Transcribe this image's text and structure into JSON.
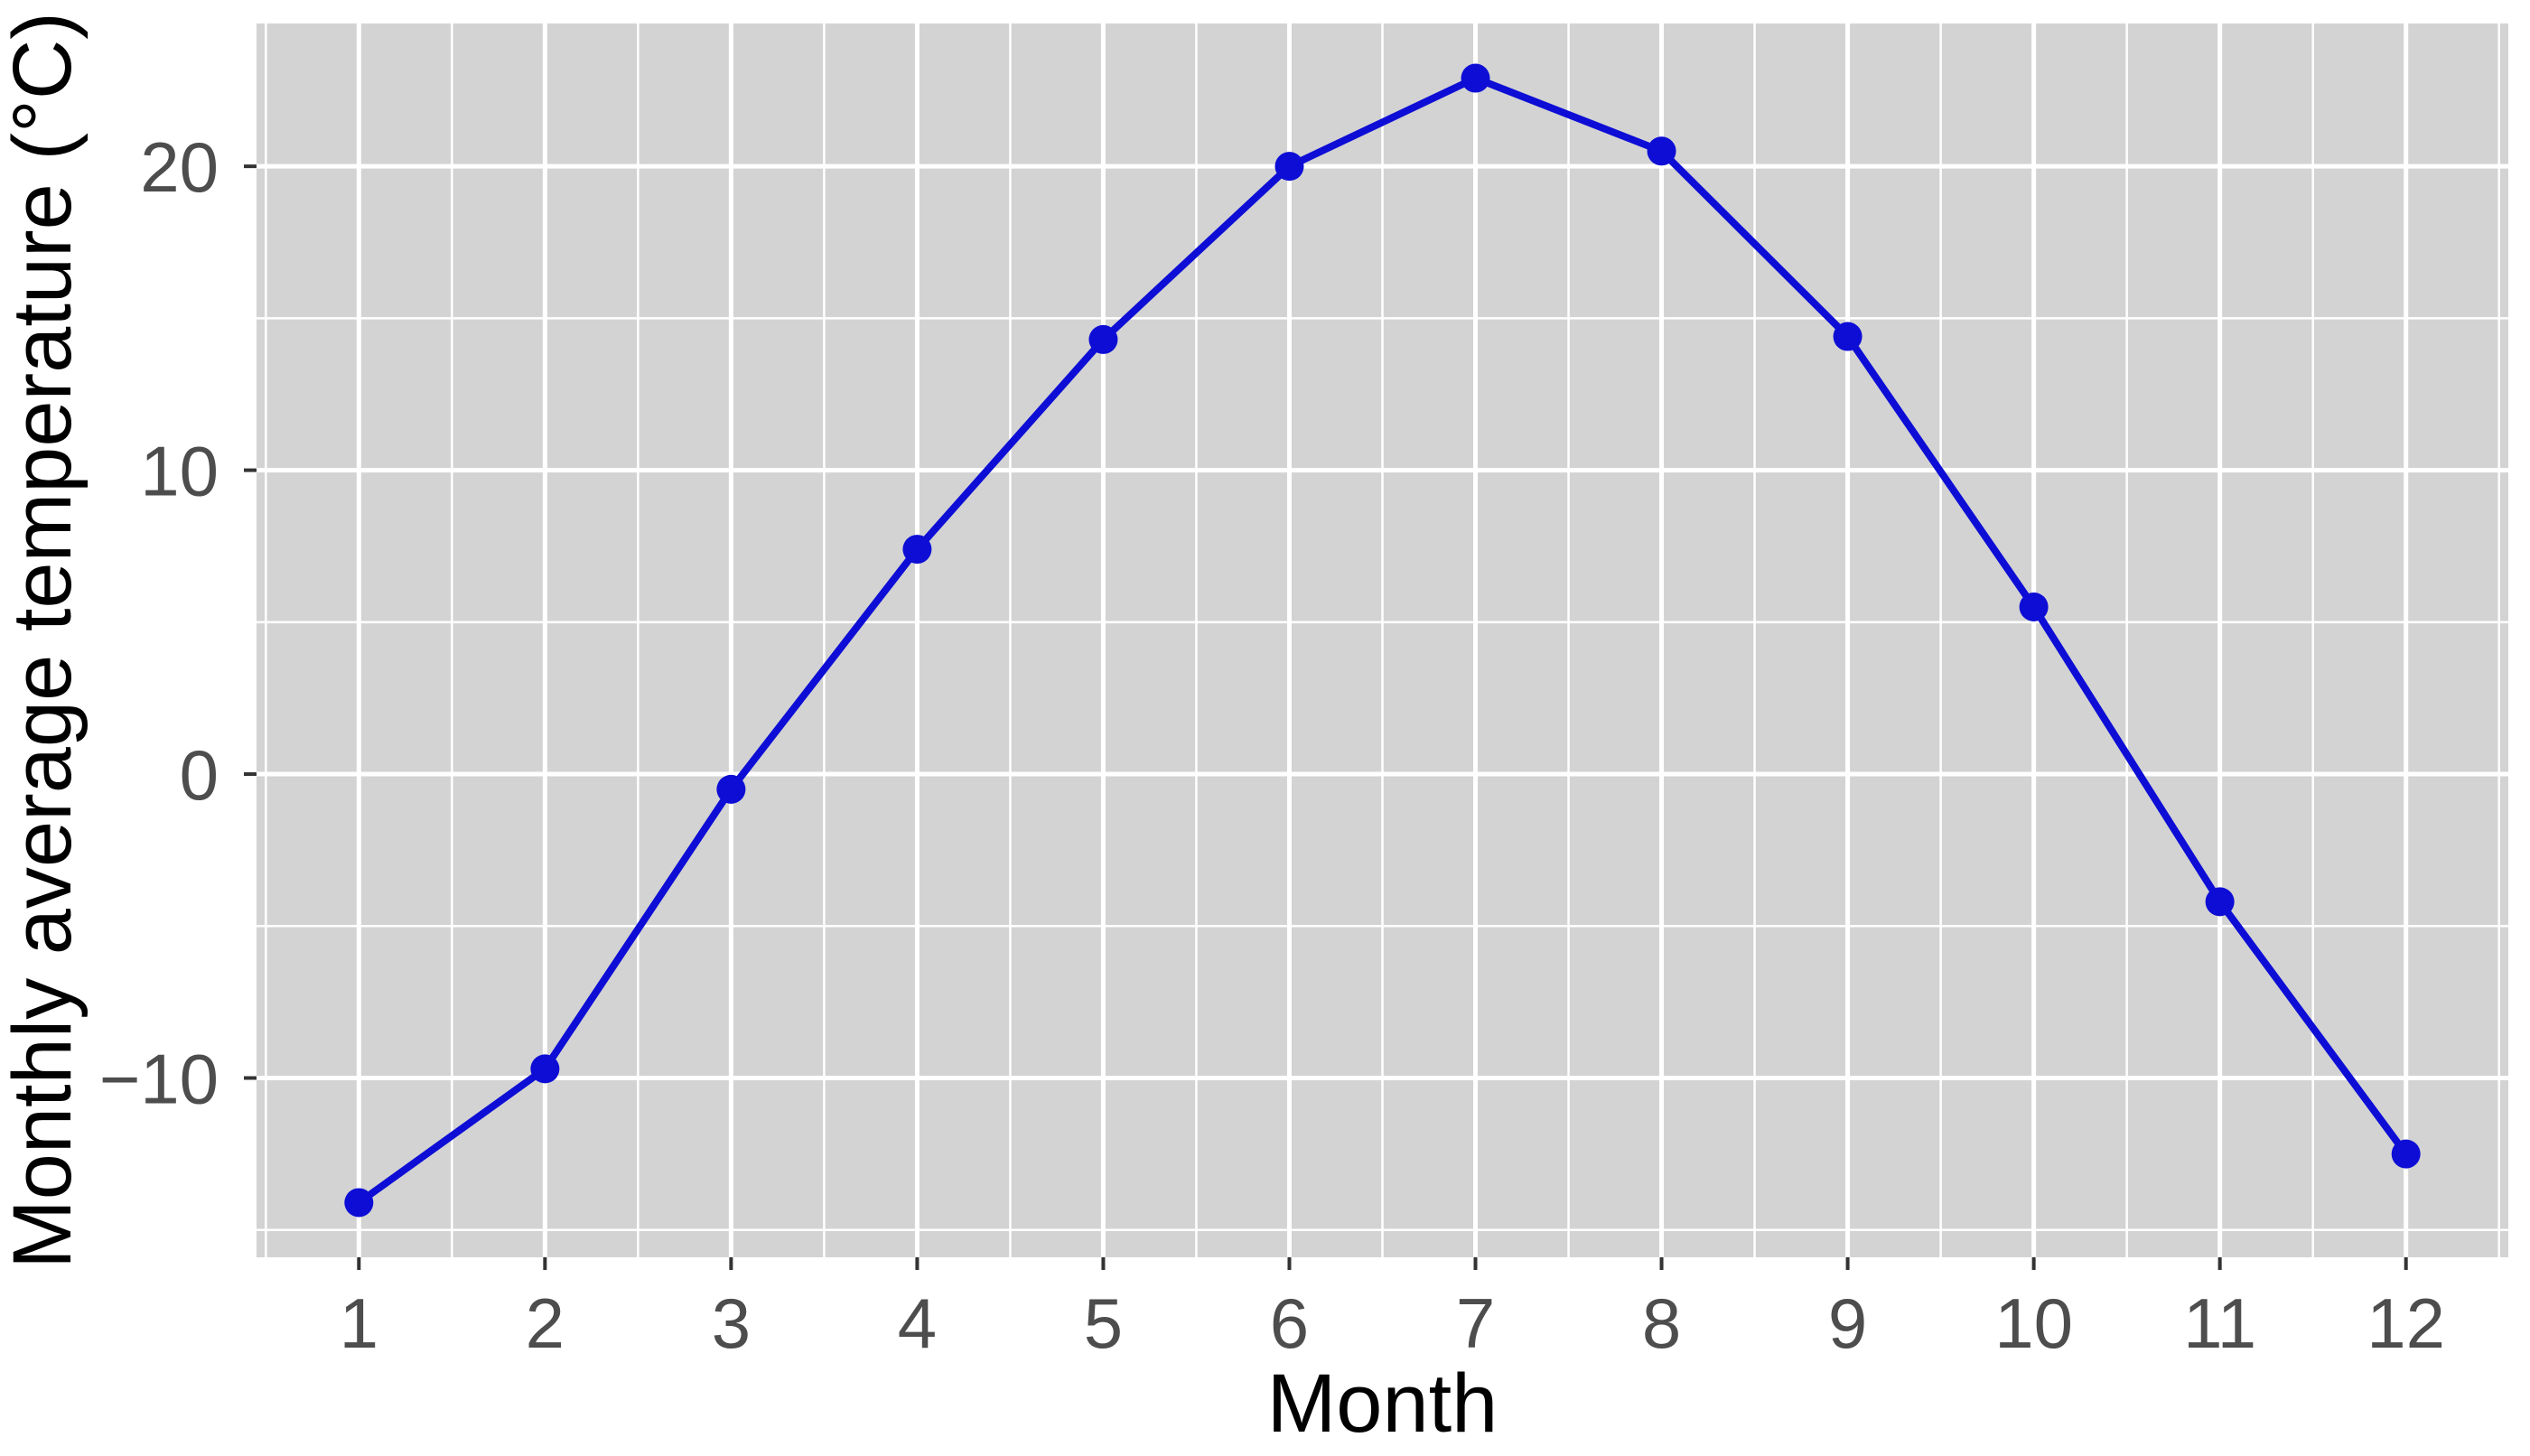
{
  "chart_data": {
    "type": "line",
    "x": [
      1,
      2,
      3,
      4,
      5,
      6,
      7,
      8,
      9,
      10,
      11,
      12
    ],
    "series": [
      {
        "name": "Monthly average temperature",
        "values": [
          -14.1,
          -9.7,
          -0.5,
          7.4,
          14.3,
          20.0,
          22.9,
          20.5,
          14.4,
          5.5,
          -4.2,
          -12.5
        ]
      }
    ],
    "title": "",
    "xlabel": "Month",
    "ylabel": "Monthly average temperature (°C)",
    "xlim": [
      0.45,
      12.55
    ],
    "ylim": [
      -15.9,
      24.7
    ],
    "x_ticks": [
      1,
      2,
      3,
      4,
      5,
      6,
      7,
      8,
      9,
      10,
      11,
      12
    ],
    "x_tick_labels": [
      "1",
      "2",
      "3",
      "4",
      "5",
      "6",
      "7",
      "8",
      "9",
      "10",
      "11",
      "12"
    ],
    "y_ticks": [
      -10,
      0,
      10,
      20
    ],
    "y_tick_labels": [
      "−10",
      "0",
      "10",
      "20"
    ],
    "x_minor": [
      0.5,
      1.5,
      2.5,
      3.5,
      4.5,
      5.5,
      6.5,
      7.5,
      8.5,
      9.5,
      10.5,
      11.5,
      12.5
    ],
    "y_minor": [
      -15,
      -5,
      5,
      15
    ],
    "grid": true,
    "legend": false,
    "style": {
      "line_color": "#0d0dd6",
      "point_color": "#0d0dd6",
      "panel_bg": "#d3d3d3",
      "grid_color": "#ffffff",
      "tick_label_color": "#4d4d4d",
      "axis_title_color": "#000000",
      "tick_mark_color": "#333333",
      "page_bg": "#ffffff",
      "line_width": 8,
      "point_radius": 16,
      "major_grid_width": 5,
      "minor_grid_width": 2.5
    }
  }
}
